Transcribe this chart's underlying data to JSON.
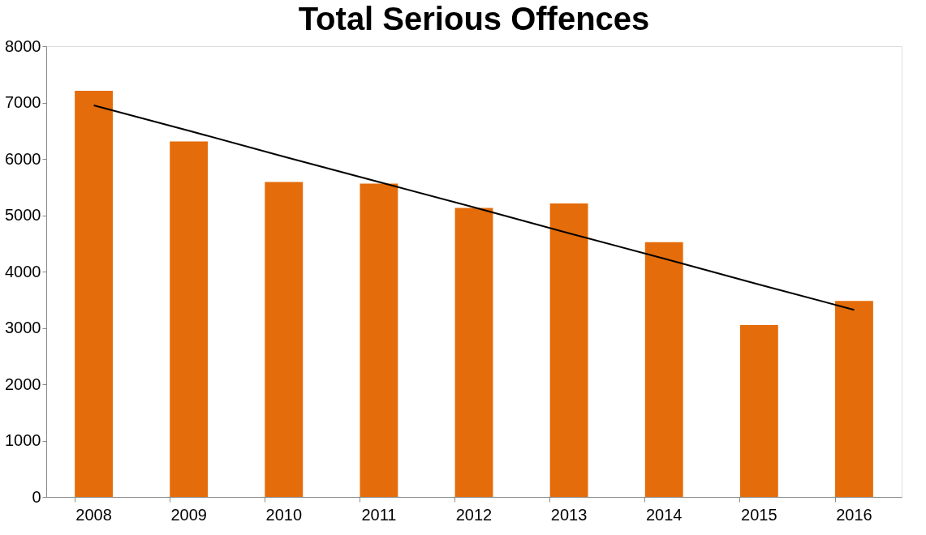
{
  "chart_data": {
    "type": "bar",
    "title": "Total Serious Offences",
    "categories": [
      "2008",
      "2009",
      "2010",
      "2011",
      "2012",
      "2013",
      "2014",
      "2015",
      "2016"
    ],
    "series": [
      {
        "color": "#e46c0a",
        "values": [
          7210,
          6310,
          5590,
          5560,
          5130,
          5210,
          4520,
          3050,
          3480
        ]
      },
      {
        "type": "line",
        "color": "#000000",
        "values": [
          6950,
          6500,
          6040,
          5590,
          5140,
          4680,
          4230,
          3770,
          3320
        ]
      }
    ],
    "ylim": [
      0,
      8000
    ],
    "yticks": [
      0,
      1000,
      2000,
      3000,
      4000,
      5000,
      6000,
      7000,
      8000
    ],
    "grid": false
  }
}
